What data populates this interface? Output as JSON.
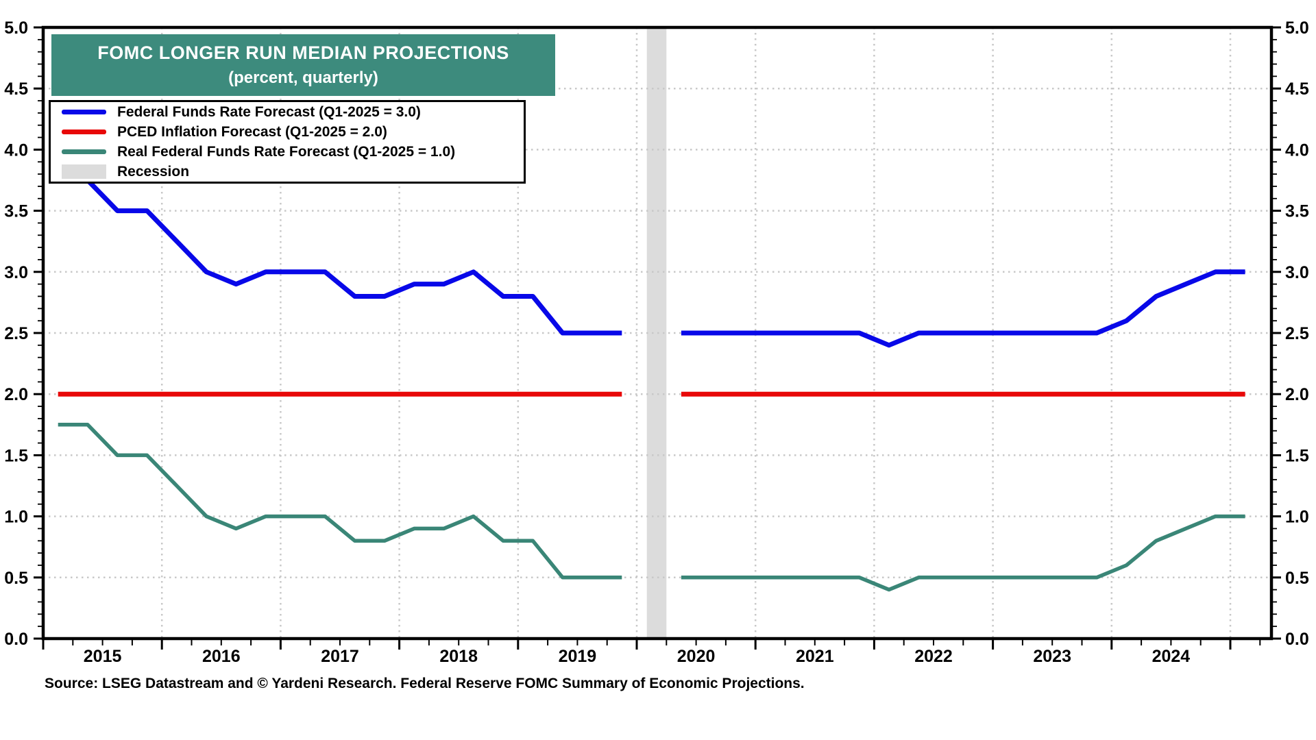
{
  "title": {
    "line1": "FOMC LONGER RUN MEDIAN PROJECTIONS",
    "line2": "(percent, quarterly)"
  },
  "source_note": "Source: LSEG Datastream and © Yardeni Research. Federal Reserve FOMC Summary of Economic Projections.",
  "colors": {
    "title_box_bg": "#3d8b7d",
    "title_text": "#ffffff",
    "ffr_blue": "#0808e8",
    "pced_red": "#e80808",
    "real_ffr_teal": "#3a8677",
    "recession_gray": "#dcdcdc",
    "gridline_gray": "#c8c8c8",
    "frame_black": "#000000"
  },
  "chart_data": {
    "type": "line",
    "x_unit": "quarterly",
    "ylim": [
      0,
      5
    ],
    "y_tick_step": 0.5,
    "y_tick_labels": [
      "0.0",
      "0.5",
      "1.0",
      "1.5",
      "2.0",
      "2.5",
      "3.0",
      "3.5",
      "4.0",
      "4.5",
      "5.0"
    ],
    "year_labels": [
      "2015",
      "2016",
      "2017",
      "2018",
      "2019",
      "2020",
      "2021",
      "2022",
      "2023",
      "2024"
    ],
    "x_gridline_years": [
      2016,
      2017,
      2018,
      2019,
      2020,
      2021,
      2022,
      2023,
      2024,
      2025
    ],
    "grid": "dotted",
    "legend_position": "top-left",
    "quarters": [
      "2015Q1",
      "2015Q2",
      "2015Q3",
      "2015Q4",
      "2016Q1",
      "2016Q2",
      "2016Q3",
      "2016Q4",
      "2017Q1",
      "2017Q2",
      "2017Q3",
      "2017Q4",
      "2018Q1",
      "2018Q2",
      "2018Q3",
      "2018Q4",
      "2019Q1",
      "2019Q2",
      "2019Q3",
      "2019Q4",
      "2020Q1",
      "2020Q2",
      "2020Q3",
      "2020Q4",
      "2021Q1",
      "2021Q2",
      "2021Q3",
      "2021Q4",
      "2022Q1",
      "2022Q2",
      "2022Q3",
      "2022Q4",
      "2023Q1",
      "2023Q2",
      "2023Q3",
      "2023Q4",
      "2024Q1",
      "2024Q2",
      "2024Q3",
      "2024Q4",
      "2025Q1"
    ],
    "gap_note": "No FOMC Summary of Economic Projections released 2020Q1 (lines broken)",
    "series": [
      {
        "name": "Federal Funds Rate Forecast (Q1-2025 = 3.0)",
        "color": "#0808e8",
        "values": [
          3.75,
          3.75,
          3.5,
          3.5,
          3.25,
          3.0,
          2.9,
          3.0,
          3.0,
          3.0,
          2.8,
          2.8,
          2.9,
          2.9,
          3.0,
          2.8,
          2.8,
          2.5,
          2.5,
          2.5,
          null,
          2.5,
          2.5,
          2.5,
          2.5,
          2.5,
          2.5,
          2.5,
          2.4,
          2.5,
          2.5,
          2.5,
          2.5,
          2.5,
          2.5,
          2.5,
          2.6,
          2.8,
          2.9,
          3.0,
          3.0
        ]
      },
      {
        "name": "PCED Inflation Forecast (Q1-2025 = 2.0)",
        "color": "#e80808",
        "values": [
          2.0,
          2.0,
          2.0,
          2.0,
          2.0,
          2.0,
          2.0,
          2.0,
          2.0,
          2.0,
          2.0,
          2.0,
          2.0,
          2.0,
          2.0,
          2.0,
          2.0,
          2.0,
          2.0,
          2.0,
          null,
          2.0,
          2.0,
          2.0,
          2.0,
          2.0,
          2.0,
          2.0,
          2.0,
          2.0,
          2.0,
          2.0,
          2.0,
          2.0,
          2.0,
          2.0,
          2.0,
          2.0,
          2.0,
          2.0,
          2.0
        ]
      },
      {
        "name": "Real Federal Funds Rate Forecast (Q1-2025 = 1.0)",
        "color": "#3a8677",
        "values": [
          1.75,
          1.75,
          1.5,
          1.5,
          1.25,
          1.0,
          0.9,
          1.0,
          1.0,
          1.0,
          0.8,
          0.8,
          0.9,
          0.9,
          1.0,
          0.8,
          0.8,
          0.5,
          0.5,
          0.5,
          null,
          0.5,
          0.5,
          0.5,
          0.5,
          0.5,
          0.5,
          0.5,
          0.4,
          0.5,
          0.5,
          0.5,
          0.5,
          0.5,
          0.5,
          0.5,
          0.6,
          0.8,
          0.9,
          1.0,
          1.0
        ]
      }
    ],
    "recession": {
      "label": "Recession",
      "color": "#dcdcdc",
      "start_year": 2020.085,
      "end_year": 2020.25
    }
  }
}
